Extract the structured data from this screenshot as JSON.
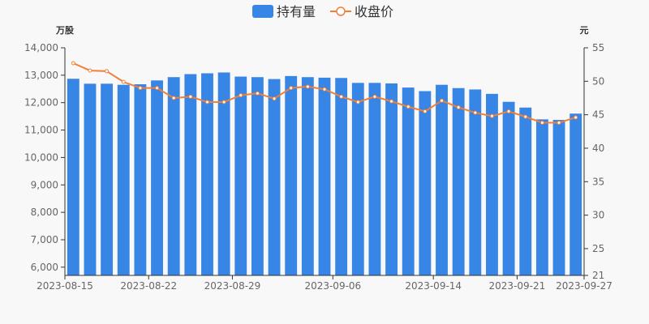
{
  "colors": {
    "bar": "#3785e5",
    "line": "#f07f3a",
    "axis": "#333333",
    "text": "#666666"
  },
  "chart_data": {
    "type": "bar+line",
    "legend": [
      "持有量",
      "收盘价"
    ],
    "legend_position": "top-center",
    "left_unit": "万股",
    "right_unit": "元",
    "x": [
      "2023-08-15",
      "2023-08-16",
      "2023-08-17",
      "2023-08-18",
      "2023-08-21",
      "2023-08-22",
      "2023-08-23",
      "2023-08-24",
      "2023-08-25",
      "2023-08-28",
      "2023-08-29",
      "2023-08-30",
      "2023-08-31",
      "2023-09-01",
      "2023-09-04",
      "2023-09-05",
      "2023-09-06",
      "2023-09-07",
      "2023-09-08",
      "2023-09-11",
      "2023-09-12",
      "2023-09-13",
      "2023-09-14",
      "2023-09-15",
      "2023-09-18",
      "2023-09-19",
      "2023-09-20",
      "2023-09-21",
      "2023-09-22",
      "2023-09-25",
      "2023-09-27"
    ],
    "x_tick_labels": [
      "2023-08-15",
      "2023-08-22",
      "2023-08-29",
      "2023-09-06",
      "2023-09-14",
      "2023-09-21",
      "2023-09-27"
    ],
    "series": [
      {
        "name": "持有量",
        "type": "bar",
        "axis": "left",
        "values": [
          12870,
          12690,
          12690,
          12650,
          12670,
          12810,
          12930,
          13040,
          13070,
          13100,
          12950,
          12930,
          12860,
          12970,
          12930,
          12910,
          12900,
          12720,
          12720,
          12700,
          12550,
          12420,
          12650,
          12530,
          12480,
          12320,
          12030,
          11820,
          11390,
          11370,
          11600
        ]
      },
      {
        "name": "收盘价",
        "type": "line",
        "axis": "right",
        "values": [
          52.7,
          51.6,
          51.5,
          49.9,
          49.0,
          49.0,
          47.5,
          47.7,
          46.9,
          46.9,
          47.9,
          48.2,
          47.4,
          49.0,
          49.2,
          48.8,
          47.7,
          46.9,
          47.7,
          47.0,
          46.2,
          45.5,
          47.1,
          46.1,
          45.3,
          44.8,
          45.5,
          44.7,
          43.8,
          43.8,
          44.6
        ]
      }
    ],
    "ylim_left": [
      5700,
      14000
    ],
    "yticks_left": [
      6000,
      7000,
      8000,
      9000,
      10000,
      11000,
      12000,
      13000,
      14000
    ],
    "ytick_labels_left": [
      "6,000",
      "7,000",
      "8,000",
      "9,000",
      "10,000",
      "11,000",
      "12,000",
      "13,000",
      "14,000"
    ],
    "ylim_right": [
      21,
      55
    ],
    "yticks_right": [
      21,
      25,
      30,
      35,
      40,
      45,
      50,
      55
    ],
    "ytick_labels_right": [
      "21",
      "25",
      "30",
      "35",
      "40",
      "45",
      "50",
      "55"
    ],
    "grid": false
  }
}
